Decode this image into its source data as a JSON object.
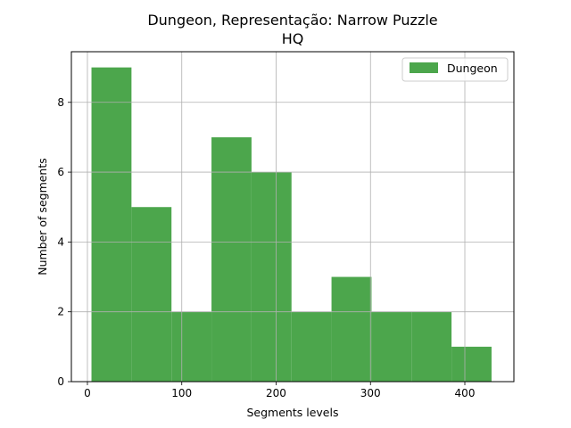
{
  "chart_data": {
    "type": "bar",
    "title_line1": "Dungeon, Representação: Narrow Puzzle",
    "title_line2": "HQ",
    "xlabel": "Segments levels",
    "ylabel": "Number of segments",
    "xlim": [
      -17,
      452
    ],
    "ylim": [
      0,
      9.45
    ],
    "xticks": [
      0,
      100,
      200,
      300,
      400
    ],
    "yticks": [
      0,
      2,
      4,
      6,
      8
    ],
    "grid": true,
    "legend_position": "top-right",
    "series": [
      {
        "name": "Dungeon",
        "color": "#4ca64c",
        "bins": [
          {
            "x0": 4.3,
            "x1": 46.7,
            "count": 9
          },
          {
            "x0": 46.7,
            "x1": 89.1,
            "count": 5
          },
          {
            "x0": 89.1,
            "x1": 131.5,
            "count": 2
          },
          {
            "x0": 131.5,
            "x1": 173.9,
            "count": 7
          },
          {
            "x0": 173.9,
            "x1": 216.3,
            "count": 6
          },
          {
            "x0": 216.3,
            "x1": 258.7,
            "count": 2
          },
          {
            "x0": 258.7,
            "x1": 301.1,
            "count": 3
          },
          {
            "x0": 301.1,
            "x1": 343.5,
            "count": 2
          },
          {
            "x0": 343.5,
            "x1": 385.9,
            "count": 2
          },
          {
            "x0": 385.9,
            "x1": 428.3,
            "count": 1
          }
        ]
      }
    ]
  }
}
